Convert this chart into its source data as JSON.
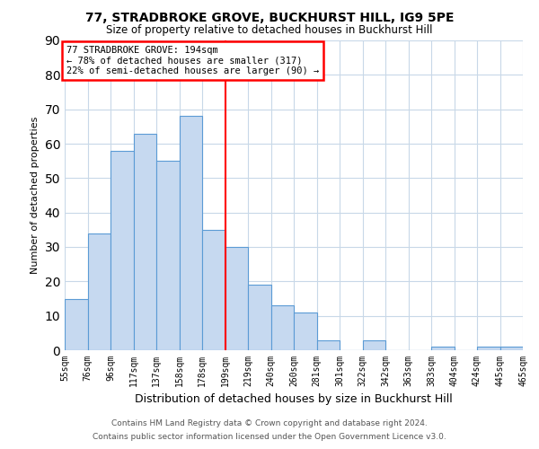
{
  "title": "77, STRADBROKE GROVE, BUCKHURST HILL, IG9 5PE",
  "subtitle": "Size of property relative to detached houses in Buckhurst Hill",
  "xlabel": "Distribution of detached houses by size in Buckhurst Hill",
  "ylabel": "Number of detached properties",
  "bin_labels": [
    "55sqm",
    "76sqm",
    "96sqm",
    "117sqm",
    "137sqm",
    "158sqm",
    "178sqm",
    "199sqm",
    "219sqm",
    "240sqm",
    "260sqm",
    "281sqm",
    "301sqm",
    "322sqm",
    "342sqm",
    "363sqm",
    "383sqm",
    "404sqm",
    "424sqm",
    "445sqm",
    "465sqm"
  ],
  "bar_heights": [
    15,
    34,
    58,
    63,
    55,
    68,
    35,
    30,
    19,
    13,
    11,
    3,
    0,
    3,
    0,
    0,
    1,
    0,
    1,
    1
  ],
  "bar_color": "#c6d9f0",
  "bar_edge_color": "#5b9bd5",
  "vline_x": 7,
  "vline_color": "#ff0000",
  "annotation_title": "77 STRADBROKE GROVE: 194sqm",
  "annotation_line1": "← 78% of detached houses are smaller (317)",
  "annotation_line2": "22% of semi-detached houses are larger (90) →",
  "annotation_box_color": "#ff0000",
  "ylim": [
    0,
    90
  ],
  "yticks": [
    0,
    10,
    20,
    30,
    40,
    50,
    60,
    70,
    80,
    90
  ],
  "footnote1": "Contains HM Land Registry data © Crown copyright and database right 2024.",
  "footnote2": "Contains public sector information licensed under the Open Government Licence v3.0.",
  "background_color": "#ffffff",
  "grid_color": "#c8d8e8"
}
